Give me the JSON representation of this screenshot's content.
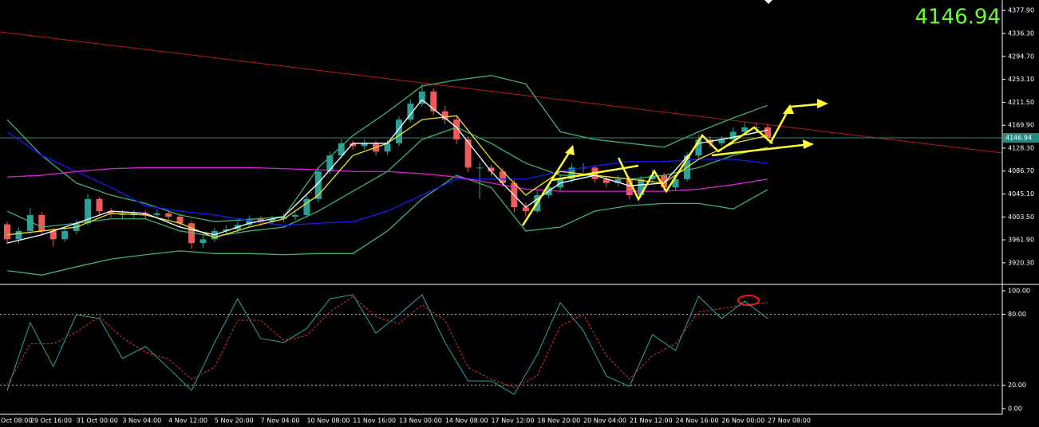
{
  "chart_data": [
    {
      "type": "candlestick",
      "categories": [
        "Oct 08:00",
        "29 Oct 16:00",
        "31 Oct 00:00",
        "3 Nov 04:00",
        "4 Nov 12:00",
        "5 Nov 20:00",
        "7 Nov 04:00",
        "10 Nov 08:00",
        "11 Nov 16:00",
        "13 Nov 00:00",
        "14 Nov 08:00",
        "17 Nov 12:00",
        "18 Nov 20:00",
        "20 Nov 04:00",
        "21 Nov 12:00",
        "24 Nov 16:00",
        "26 Nov 00:00",
        "27 Nov 08:00"
      ],
      "values": [
        [
          3990,
          3995,
          3955,
          3963
        ],
        [
          3963,
          3985,
          3955,
          3978
        ],
        [
          3978,
          4020,
          3972,
          4007
        ],
        [
          4007,
          4012,
          3970,
          3978
        ],
        [
          3978,
          3983,
          3950,
          3963
        ],
        [
          3963,
          3984,
          3958,
          3978
        ],
        [
          3978,
          3998,
          3972,
          3992
        ],
        [
          3992,
          4045,
          3988,
          4036
        ],
        [
          4036,
          4040,
          4008,
          4014
        ],
        [
          4014,
          4020,
          4002,
          4010
        ],
        [
          4010,
          4016,
          4000,
          4007
        ],
        [
          4007,
          4016,
          4001,
          4010
        ],
        [
          4010,
          4015,
          4000,
          4007
        ],
        [
          4007,
          4017,
          4001,
          4010
        ],
        [
          4010,
          4014,
          3996,
          4004
        ],
        [
          4004,
          4009,
          3985,
          3992
        ],
        [
          3992,
          3996,
          3945,
          3956
        ],
        [
          3956,
          3970,
          3948,
          3963
        ],
        [
          3963,
          3984,
          3958,
          3978
        ],
        [
          3978,
          3988,
          3972,
          3981
        ],
        [
          3981,
          3995,
          3975,
          3989
        ],
        [
          3989,
          4006,
          3984,
          4000
        ],
        [
          4000,
          4005,
          3988,
          3995
        ],
        [
          3995,
          4006,
          3990,
          4000
        ],
        [
          4000,
          4010,
          3994,
          4004
        ],
        [
          4004,
          4012,
          3998,
          4007
        ],
        [
          4007,
          4042,
          4002,
          4036
        ],
        [
          4036,
          4092,
          4030,
          4086
        ],
        [
          4086,
          4122,
          4080,
          4115
        ],
        [
          4115,
          4145,
          4110,
          4137
        ],
        [
          4137,
          4142,
          4125,
          4132
        ],
        [
          4132,
          4144,
          4126,
          4137
        ],
        [
          4137,
          4141,
          4115,
          4122
        ],
        [
          4122,
          4143,
          4116,
          4137
        ],
        [
          4137,
          4186,
          4132,
          4180
        ],
        [
          4180,
          4216,
          4175,
          4209
        ],
        [
          4209,
          4245,
          4204,
          4231
        ],
        [
          4231,
          4236,
          4188,
          4195
        ],
        [
          4195,
          4205,
          4172,
          4180
        ],
        [
          4180,
          4186,
          4136,
          4144
        ],
        [
          4144,
          4150,
          4085,
          4093
        ],
        [
          4093,
          4102,
          4036,
          4093
        ],
        [
          4093,
          4098,
          4078,
          4086
        ],
        [
          4086,
          4092,
          4058,
          4065
        ],
        [
          4065,
          4070,
          4012,
          4021
        ],
        [
          4021,
          4030,
          4005,
          4014
        ],
        [
          4014,
          4050,
          4010,
          4043
        ],
        [
          4043,
          4064,
          4038,
          4057
        ],
        [
          4057,
          4080,
          4050,
          4072
        ],
        [
          4072,
          4100,
          4066,
          4093
        ],
        [
          4093,
          4101,
          4084,
          4093
        ],
        [
          4093,
          4098,
          4066,
          4072
        ],
        [
          4072,
          4078,
          4058,
          4065
        ],
        [
          4065,
          4079,
          4058,
          4072
        ],
        [
          4072,
          4077,
          4036,
          4043
        ],
        [
          4043,
          4078,
          4038,
          4072
        ],
        [
          4072,
          4090,
          4066,
          4079
        ],
        [
          4079,
          4084,
          4050,
          4057
        ],
        [
          4057,
          4078,
          4052,
          4072
        ],
        [
          4072,
          4122,
          4068,
          4115
        ],
        [
          4115,
          4152,
          4110,
          4144
        ],
        [
          4144,
          4150,
          4130,
          4137
        ],
        [
          4137,
          4150,
          4132,
          4144
        ],
        [
          4144,
          4166,
          4138,
          4158
        ],
        [
          4158,
          4175,
          4152,
          4166
        ],
        [
          4166,
          4174,
          4158,
          4166
        ],
        [
          4166,
          4172,
          4140,
          4146.94
        ]
      ],
      "up_color": "#2aa198",
      "down_color": "#f05a5a",
      "last_price": 4146.94,
      "last_price_color": "#2a8a82",
      "big_label_color": "#66ff33",
      "overlay_x": [
        0,
        3,
        6,
        9,
        12,
        15,
        18,
        21,
        24,
        27,
        30,
        33,
        36,
        39,
        42,
        45,
        48,
        51,
        54,
        57,
        60,
        63,
        66
      ],
      "overlays": [
        {
          "color": "#3cb371",
          "values": [
            4180,
            4115,
            4065,
            4043,
            4028,
            4007,
            3995,
            3999,
            4004,
            4093,
            4151,
            4194,
            4241,
            4252,
            4260,
            4245,
            4158,
            4144,
            4137,
            4130,
            4158,
            4183,
            4206
          ]
        },
        {
          "color": "#3cb371",
          "values": [
            3906,
            3898,
            3913,
            3927,
            3935,
            3942,
            3937,
            3937,
            3935,
            3937,
            3937,
            3978,
            4036,
            4079,
            4057,
            3978,
            3985,
            4014,
            4024,
            4028,
            4028,
            4018,
            4053
          ]
        },
        {
          "color": "#3cb371",
          "values": [
            4014,
            3985,
            3992,
            4000,
            4000,
            3978,
            3968,
            3978,
            3985,
            4014,
            4050,
            4086,
            4144,
            4166,
            4137,
            4101,
            4079,
            4079,
            4072,
            4079,
            4093,
            4115,
            4130
          ]
        },
        {
          "color": "#1a1aff",
          "values": [
            4158,
            4115,
            4086,
            4057,
            4024,
            4014,
            4007,
            3997,
            3988,
            3992,
            3995,
            4014,
            4043,
            4072,
            4072,
            4072,
            4086,
            4096,
            4104,
            4104,
            4108,
            4108,
            4101
          ]
        },
        {
          "color": "#e020e0",
          "values": [
            4076,
            4079,
            4086,
            4091,
            4093,
            4093,
            4093,
            4093,
            4091,
            4089,
            4086,
            4086,
            4082,
            4076,
            4065,
            4054,
            4050,
            4050,
            4050,
            4050,
            4054,
            4062,
            4072
          ]
        },
        {
          "color": "#f0e020",
          "values": [
            3971,
            3978,
            3985,
            4010,
            4007,
            3992,
            3966,
            3985,
            4000,
            4043,
            4115,
            4137,
            4180,
            4187,
            4108,
            4043,
            4086,
            4079,
            4072,
            4065,
            4108,
            4137,
            4151
          ]
        },
        {
          "color": "#ffffff",
          "values": [
            3956,
            3971,
            3992,
            4014,
            4010,
            3985,
            3971,
            3992,
            4004,
            4065,
            4137,
            4137,
            4216,
            4166,
            4086,
            4021,
            4065,
            4079,
            4060,
            4065,
            4137,
            4148,
            4161
          ]
        }
      ],
      "ylim": [
        3884,
        4397
      ],
      "yticks": [
        {
          "value": 4377.9,
          "label": "4377.90"
        },
        {
          "value": 4336.3,
          "label": "4336.30"
        },
        {
          "value": 4294.7,
          "label": "4294.70"
        },
        {
          "value": 4253.1,
          "label": "4253.10"
        },
        {
          "value": 4211.5,
          "label": "4211.50"
        },
        {
          "value": 4169.9,
          "label": "4169.90"
        },
        {
          "value": 4128.3,
          "label": "4128.30"
        },
        {
          "value": 4086.7,
          "label": "4086.70"
        },
        {
          "value": 4045.1,
          "label": "4045.10"
        },
        {
          "value": 4003.5,
          "label": "4003.50"
        },
        {
          "value": 3961.9,
          "label": "3961.90"
        },
        {
          "value": 3920.3,
          "label": "3920.30"
        }
      ]
    },
    {
      "type": "line",
      "x": [
        0,
        2,
        4,
        6,
        8,
        10,
        12,
        14,
        16,
        18,
        20,
        22,
        24,
        26,
        28,
        30,
        32,
        34,
        36,
        38,
        40,
        42,
        44,
        46,
        48,
        50,
        52,
        54,
        56,
        58,
        60,
        62,
        64,
        66
      ],
      "series": [
        {
          "color": "#2fa4a4",
          "dash": false,
          "values": [
            15.5,
            73.0,
            35.8,
            79.7,
            76.4,
            42.6,
            52.7,
            34.5,
            15.5,
            56.1,
            93.2,
            59.5,
            56.1,
            68.2,
            93.2,
            96.6,
            64.2,
            79.7,
            96.6,
            56.1,
            23.6,
            23.6,
            12.2,
            45.9,
            89.9,
            66.2,
            27.7,
            18.9,
            62.8,
            49.3,
            95.3,
            76.4,
            91.2,
            76.4
          ]
        },
        {
          "color": "#e03030",
          "dash": true,
          "values": [
            20,
            55,
            55,
            65,
            78,
            60,
            48,
            42,
            25,
            35,
            75,
            75,
            58,
            62,
            82,
            95,
            78,
            72,
            88,
            75,
            35,
            25,
            18,
            28,
            70,
            80,
            45,
            25,
            45,
            55,
            82,
            85,
            88,
            90
          ]
        }
      ],
      "levels": [
        80,
        20
      ],
      "ylim": [
        -5,
        105
      ],
      "yticks": [
        {
          "value": 100,
          "label": "100.00"
        },
        {
          "value": 80,
          "label": "80.00"
        },
        {
          "value": 20,
          "label": "20.00"
        },
        {
          "value": 0,
          "label": "0.00"
        }
      ]
    }
  ]
}
